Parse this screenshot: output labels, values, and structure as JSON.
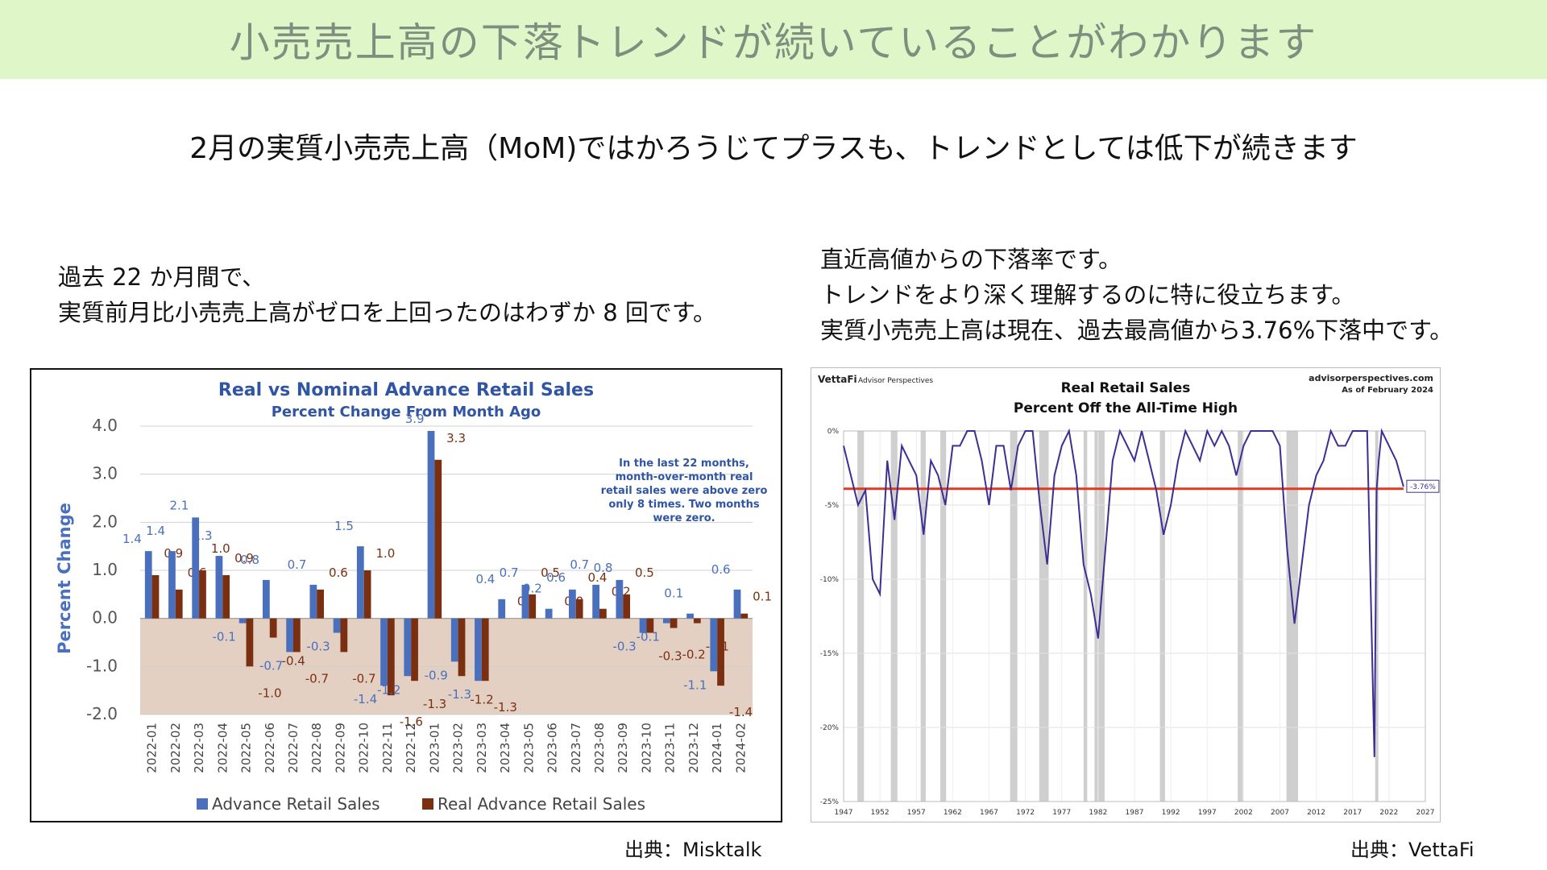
{
  "header": {
    "banner": "小売売上高の下落トレンドが続いていることがわかります",
    "subtitle": "2月の実質小売売上高（MoM)ではかろうじてプラスも、トレンドとしては低下が続きます"
  },
  "notes": {
    "left": [
      "過去 22 か月間で、",
      "実質前月比小売売上高がゼロを上回ったのはわずか 8 回です。"
    ],
    "right": [
      "直近高値からの下落率です。",
      "トレンドをより深く理解するのに特に役立ちます。",
      "実質小売売上高は現在、過去最高値から3.76%下落中です。"
    ]
  },
  "sources": {
    "left": "出典：Misktalk",
    "right": "出典：VettaFi"
  },
  "colors": {
    "banner_bg": "#dff7c8",
    "nominal": "#4a70bd",
    "real": "#7a3010",
    "shade": "#dcc4b4",
    "line": "#3c2f92",
    "trend": "#e03a22",
    "recession": "#cfcfcf"
  },
  "chart_data": [
    {
      "type": "bar",
      "title": "Real vs Nominal Advance Retail Sales",
      "subtitle": "Percent Change From Month Ago",
      "ylabel": "Percent Change",
      "ylim": [
        -2.0,
        4.0
      ],
      "yticks": [
        "4.0",
        "3.0",
        "2.0",
        "1.0",
        "0.0",
        "-1.0",
        "-2.0"
      ],
      "categories": [
        "2022-01",
        "2022-02",
        "2022-03",
        "2022-04",
        "2022-05",
        "2022-06",
        "2022-07",
        "2022-08",
        "2022-09",
        "2022-10",
        "2022-11",
        "2022-12",
        "2023-01",
        "2023-02",
        "2023-03",
        "2023-04",
        "2023-05",
        "2023-06",
        "2023-07",
        "2023-08",
        "2023-09",
        "2023-10",
        "2023-11",
        "2023-12",
        "2024-01",
        "2024-02"
      ],
      "series": [
        {
          "name": "Advance Retail Sales",
          "values": [
            1.4,
            1.4,
            2.1,
            1.3,
            -0.1,
            0.8,
            -0.7,
            0.7,
            -0.3,
            1.5,
            -1.4,
            -1.2,
            3.9,
            -0.9,
            -1.3,
            0.4,
            0.7,
            0.2,
            0.6,
            0.7,
            0.8,
            -0.3,
            -0.1,
            0.1,
            -1.1,
            0.6
          ]
        },
        {
          "name": "Real Advance Retail Sales",
          "values": [
            0.9,
            0.6,
            1.0,
            0.9,
            -1.0,
            -0.4,
            -0.7,
            0.6,
            -0.7,
            1.0,
            -1.6,
            -1.3,
            3.3,
            -1.2,
            -1.3,
            0.0,
            0.5,
            0.0,
            0.4,
            0.2,
            0.5,
            -0.3,
            -0.2,
            -0.1,
            -1.4,
            0.1
          ]
        }
      ],
      "annotation": "In the last 22 months, month-over-month real retail sales were above zero only 8 times. Two months were zero."
    },
    {
      "type": "line",
      "title": "Real Retail Sales",
      "subtitle": "Percent Off the All-Time High",
      "brand": "VettaFi",
      "brand_sub": "Advisor Perspectives",
      "site": "advisorperspectives.com",
      "as_of": "As of February 2024",
      "xticks": [
        "1947",
        "1952",
        "1957",
        "1962",
        "1967",
        "1972",
        "1977",
        "1982",
        "1987",
        "1992",
        "1997",
        "2002",
        "2007",
        "2012",
        "2017",
        "2022",
        "2027"
      ],
      "yticks": [
        "0%",
        "-5%",
        "-10%",
        "-15%",
        "-20%",
        "-25%"
      ],
      "ylim": [
        -25,
        0
      ],
      "xlim": [
        1947,
        2027
      ],
      "current_label": "-3.76%",
      "average": -3.9,
      "series": [
        {
          "x": [
            1947,
            1948,
            1949,
            1950,
            1951,
            1952,
            1953,
            1954,
            1955,
            1956,
            1957,
            1958,
            1959,
            1960,
            1961,
            1962,
            1963,
            1964,
            1965,
            1966,
            1967,
            1968,
            1969,
            1970,
            1971,
            1972,
            1973,
            1974,
            1975,
            1976,
            1977,
            1978,
            1979,
            1980,
            1981,
            1982,
            1983,
            1984,
            1985,
            1986,
            1987,
            1988,
            1989,
            1990,
            1991,
            1992,
            1993,
            1994,
            1995,
            1996,
            1997,
            1998,
            1999,
            2000,
            2001,
            2002,
            2003,
            2004,
            2005,
            2006,
            2007,
            2008,
            2009,
            2010,
            2011,
            2012,
            2013,
            2014,
            2015,
            2016,
            2017,
            2018,
            2019,
            2020,
            2020.3,
            2020.6,
            2021,
            2022,
            2023,
            2024
          ],
          "y": [
            -1,
            -3,
            -5,
            -4,
            -10,
            -11,
            -2,
            -6,
            -1,
            -2,
            -3,
            -7,
            -2,
            -3,
            -5,
            -1,
            -1,
            0,
            0,
            -2,
            -5,
            -1,
            -1,
            -4,
            -1,
            0,
            0,
            -5,
            -9,
            -3,
            -1,
            0,
            -3,
            -9,
            -11,
            -14,
            -8,
            -2,
            0,
            -1,
            -2,
            0,
            -2,
            -4,
            -7,
            -5,
            -2,
            0,
            -1,
            -2,
            0,
            -1,
            0,
            -1,
            -3,
            -1,
            0,
            0,
            0,
            0,
            -1,
            -8,
            -13,
            -9,
            -5,
            -3,
            -2,
            0,
            -1,
            -1,
            0,
            0,
            0,
            -22,
            -4,
            -2,
            0,
            -1,
            -2,
            -3.76
          ]
        }
      ],
      "recessions": [
        [
          1948.9,
          1949.8
        ],
        [
          1953.5,
          1954.4
        ],
        [
          1957.6,
          1958.3
        ],
        [
          1960.3,
          1961.1
        ],
        [
          1969.9,
          1970.9
        ],
        [
          1973.9,
          1975.2
        ],
        [
          1980.0,
          1980.5
        ],
        [
          1981.5,
          1982.9
        ],
        [
          1990.5,
          1991.2
        ],
        [
          2001.2,
          2001.9
        ],
        [
          2007.9,
          2009.5
        ],
        [
          2020.1,
          2020.4
        ]
      ]
    }
  ]
}
